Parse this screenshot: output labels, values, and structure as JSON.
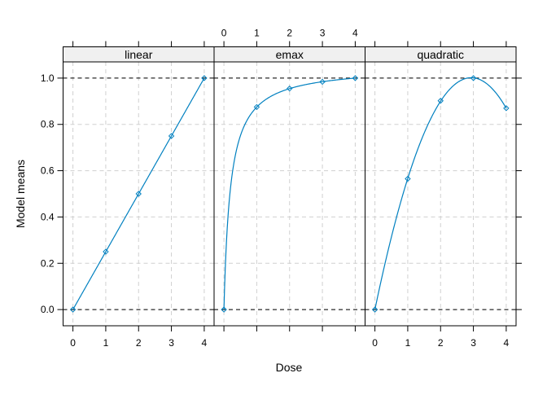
{
  "chart_data": {
    "type": "line",
    "layout": "lattice panels (1 row x 3 columns)",
    "xlabel": "Dose",
    "ylabel": "Model means",
    "xlim": [
      -0.3,
      4.3
    ],
    "ylim": [
      -0.07,
      1.07
    ],
    "x_ticks": [
      0,
      1,
      2,
      3,
      4
    ],
    "y_ticks": [
      0.0,
      0.2,
      0.4,
      0.6,
      0.8,
      1.0
    ],
    "y_tick_labels": [
      "0.0",
      "0.2",
      "0.4",
      "0.6",
      "0.8",
      "1.0"
    ],
    "grid": true,
    "reference_lines": [
      0,
      1
    ],
    "colors": {
      "series": "#0080c0",
      "grid": "#d0d0d0",
      "strip": "#f0f0f0"
    },
    "panels": [
      {
        "name": "linear",
        "x": [
          0,
          1,
          2,
          3,
          4
        ],
        "y": [
          0.0,
          0.25,
          0.5,
          0.75,
          1.0
        ]
      },
      {
        "name": "emax",
        "x": [
          0,
          1,
          2,
          3,
          4
        ],
        "y": [
          0.0,
          0.875,
          0.955,
          0.984,
          1.0
        ]
      },
      {
        "name": "quadratic",
        "x": [
          0,
          1,
          2,
          3,
          4
        ],
        "y": [
          0.0,
          0.565,
          0.902,
          1.0,
          0.87
        ]
      }
    ]
  }
}
